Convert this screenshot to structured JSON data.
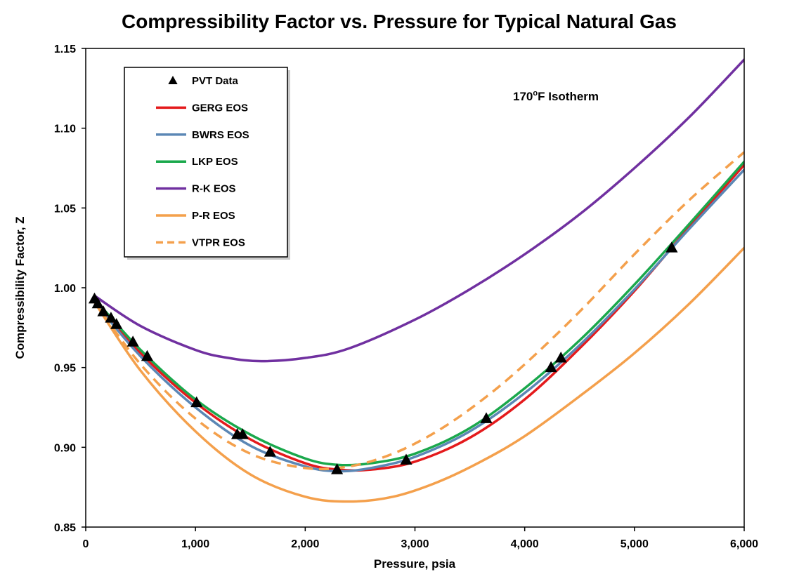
{
  "chart_data": {
    "type": "line",
    "title": "Compressibility Factor vs. Pressure for Typical Natural Gas",
    "xlabel": "Pressure, psia",
    "ylabel": "Compressibility  Factor, Z",
    "xlim": [
      0,
      6000
    ],
    "ylim": [
      0.85,
      1.15
    ],
    "xticks": [
      0,
      1000,
      2000,
      3000,
      4000,
      5000,
      6000
    ],
    "xtick_labels": [
      "0",
      "1,000",
      "2,000",
      "3,000",
      "4,000",
      "5,000",
      "6,000"
    ],
    "yticks": [
      0.85,
      0.9,
      0.95,
      1.0,
      1.05,
      1.1,
      1.15
    ],
    "ytick_labels": [
      "0.85",
      "0.90",
      "0.95",
      "1.00",
      "1.05",
      "1.10",
      "1.15"
    ],
    "grid": false,
    "legend_position": "top-left",
    "annotation": {
      "main": "170",
      "sup": "o",
      "rest": "F Isotherm"
    },
    "pvt_data": {
      "name": "PVT Data",
      "marker": "triangle",
      "color": "#000000",
      "x": [
        80,
        110,
        160,
        230,
        280,
        430,
        560,
        1010,
        1380,
        1430,
        1680,
        2290,
        2920,
        3650,
        4240,
        4330,
        5340
      ],
      "y": [
        0.993,
        0.99,
        0.985,
        0.981,
        0.977,
        0.966,
        0.957,
        0.928,
        0.908,
        0.908,
        0.897,
        0.886,
        0.892,
        0.918,
        0.95,
        0.956,
        1.025
      ]
    },
    "series": [
      {
        "name": "GERG EOS",
        "color": "#e41a1c",
        "dash": false,
        "x": [
          80,
          500,
          1000,
          1500,
          2000,
          2300,
          2600,
          3000,
          3500,
          4000,
          4500,
          5000,
          5500,
          6000
        ],
        "y": [
          0.992,
          0.959,
          0.928,
          0.905,
          0.89,
          0.886,
          0.886,
          0.891,
          0.906,
          0.93,
          0.962,
          0.998,
          1.038,
          1.077
        ]
      },
      {
        "name": "BWRS EOS",
        "color": "#5b87b5",
        "dash": false,
        "x": [
          80,
          500,
          1000,
          1500,
          2000,
          2300,
          2600,
          3000,
          3500,
          4000,
          4500,
          5000,
          5500,
          6000
        ],
        "y": [
          0.991,
          0.957,
          0.925,
          0.901,
          0.888,
          0.885,
          0.887,
          0.894,
          0.91,
          0.934,
          0.964,
          0.999,
          1.037,
          1.074
        ]
      },
      {
        "name": "LKP EOS",
        "color": "#1aa84c",
        "dash": false,
        "x": [
          80,
          500,
          1000,
          1500,
          2000,
          2300,
          2600,
          3000,
          3500,
          4000,
          4500,
          5000,
          5500,
          6000
        ],
        "y": [
          0.993,
          0.961,
          0.93,
          0.908,
          0.893,
          0.889,
          0.89,
          0.896,
          0.912,
          0.937,
          0.967,
          1.002,
          1.04,
          1.079
        ]
      },
      {
        "name": "R-K EOS",
        "color": "#7030a0",
        "dash": false,
        "x": [
          80,
          500,
          1000,
          1300,
          1600,
          2000,
          2400,
          3000,
          3500,
          4000,
          4500,
          5000,
          5500,
          6000
        ],
        "y": [
          0.995,
          0.976,
          0.961,
          0.956,
          0.954,
          0.956,
          0.962,
          0.98,
          0.999,
          1.021,
          1.046,
          1.075,
          1.107,
          1.143
        ]
      },
      {
        "name": "P-R EOS",
        "color": "#f4a04c",
        "dash": false,
        "x": [
          80,
          500,
          1000,
          1500,
          2000,
          2400,
          2800,
          3200,
          3600,
          4000,
          4500,
          5000,
          5500,
          6000
        ],
        "y": [
          0.991,
          0.948,
          0.91,
          0.883,
          0.869,
          0.866,
          0.869,
          0.878,
          0.891,
          0.907,
          0.932,
          0.959,
          0.99,
          1.025
        ]
      },
      {
        "name": "VTPR EOS",
        "color": "#f4a04c",
        "dash": true,
        "x": [
          80,
          500,
          1000,
          1500,
          2000,
          2400,
          2800,
          3200,
          3600,
          4000,
          4500,
          5000,
          5500,
          6000
        ],
        "y": [
          0.991,
          0.952,
          0.918,
          0.896,
          0.887,
          0.888,
          0.896,
          0.91,
          0.929,
          0.952,
          0.985,
          1.021,
          1.055,
          1.085
        ]
      }
    ]
  }
}
